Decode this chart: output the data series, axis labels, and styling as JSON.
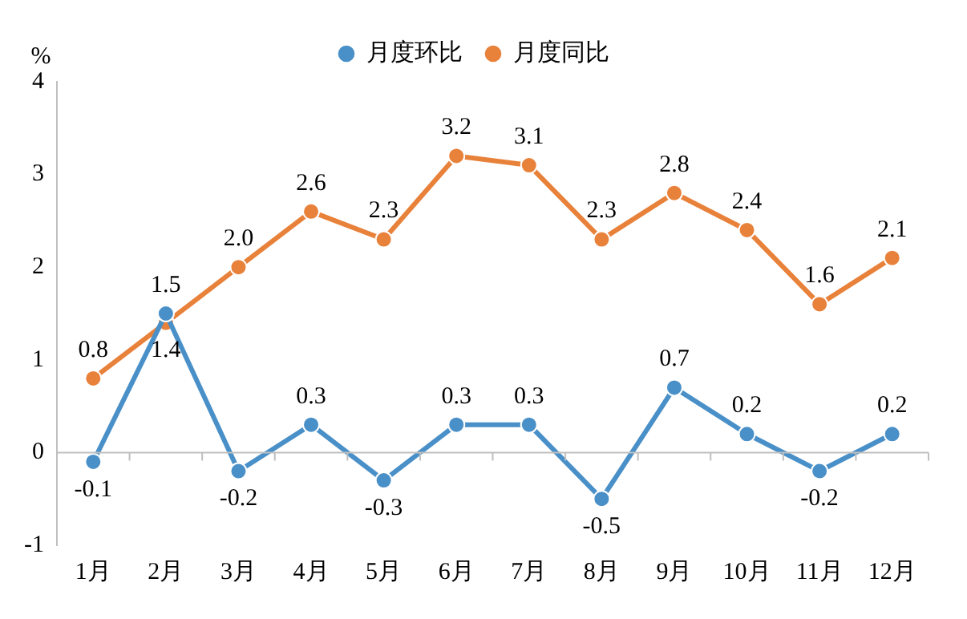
{
  "chart_data": {
    "type": "line",
    "ylabel": "%",
    "categories": [
      "1月",
      "2月",
      "3月",
      "4月",
      "5月",
      "6月",
      "7月",
      "8月",
      "9月",
      "10月",
      "11月",
      "12月"
    ],
    "series": [
      {
        "name": "月度环比",
        "color": "#4a90c8",
        "values": [
          -0.1,
          1.5,
          -0.2,
          0.3,
          -0.3,
          0.3,
          0.3,
          -0.5,
          0.7,
          0.2,
          -0.2,
          0.2
        ],
        "value_labels": [
          "-0.1",
          "1.5",
          "-0.2",
          "0.3",
          "-0.3",
          "0.3",
          "0.3",
          "-0.5",
          "0.7",
          "0.2",
          "-0.2",
          "0.2"
        ]
      },
      {
        "name": "月度同比",
        "color": "#e8813a",
        "values": [
          0.8,
          1.4,
          2.0,
          2.6,
          2.3,
          3.2,
          3.1,
          2.3,
          2.8,
          2.4,
          1.6,
          2.1
        ],
        "value_labels": [
          "0.8",
          "1.4",
          "2.0",
          "2.6",
          "2.3",
          "3.2",
          "3.1",
          "2.3",
          "2.8",
          "2.4",
          "1.6",
          "2.1"
        ]
      }
    ],
    "ylim": [
      -1,
      4
    ],
    "yticks": [
      -1,
      0,
      1,
      2,
      3,
      4
    ],
    "legend": "top",
    "marker": "circle",
    "line_style": "solid"
  }
}
